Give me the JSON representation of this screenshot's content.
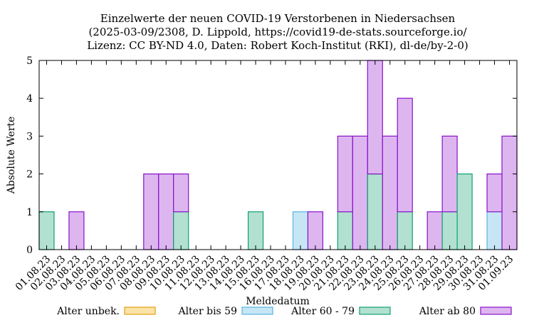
{
  "chart_data": {
    "type": "bar",
    "stacked": true,
    "title_lines": [
      "Einzelwerte der neuen COVID-19 Verstorbenen in Niedersachsen",
      "(2025-03-09/2308, D. Lippold, https://covid19-de-stats.sourceforge.io/",
      "Lizenz: CC BY-ND 4.0, Daten: Robert Koch-Institut (RKI), dl-de/by-2-0)"
    ],
    "xlabel": "Meldedatum",
    "ylabel": "Absolute Werte",
    "ylim": [
      0,
      5
    ],
    "yticks": [
      "0",
      "1",
      "2",
      "3",
      "4",
      "5"
    ],
    "legend_position": "bottom",
    "categories": [
      "01.08.23",
      "02.08.23",
      "03.08.23",
      "04.08.23",
      "05.08.23",
      "06.08.23",
      "07.08.23",
      "08.08.23",
      "09.08.23",
      "10.08.23",
      "11.08.23",
      "12.08.23",
      "13.08.23",
      "14.08.23",
      "15.08.23",
      "16.08.23",
      "17.08.23",
      "18.08.23",
      "19.08.23",
      "20.08.23",
      "21.08.23",
      "22.08.23",
      "23.08.23",
      "24.08.23",
      "25.08.23",
      "26.08.23",
      "27.08.23",
      "28.08.23",
      "29.08.23",
      "30.08.23",
      "31.08.23",
      "01.09.23"
    ],
    "series": [
      {
        "name": "Alter unbek.",
        "fill": "#fbe3a8",
        "stroke": "#e1a010",
        "values": [
          0,
          0,
          0,
          0,
          0,
          0,
          0,
          0,
          0,
          0,
          0,
          0,
          0,
          0,
          0,
          0,
          0,
          0,
          0,
          0,
          0,
          0,
          0,
          0,
          0,
          0,
          0,
          0,
          0,
          0,
          0,
          0
        ]
      },
      {
        "name": "Alter bis 59",
        "fill": "#c6e6f5",
        "stroke": "#56b4e0",
        "values": [
          0,
          0,
          0,
          0,
          0,
          0,
          0,
          0,
          0,
          0,
          0,
          0,
          0,
          0,
          0,
          0,
          0,
          1,
          0,
          0,
          0,
          0,
          0,
          0,
          0,
          0,
          0,
          0,
          0,
          0,
          1,
          0
        ]
      },
      {
        "name": "Alter 60 - 79",
        "fill": "#b3e1d1",
        "stroke": "#10a070",
        "values": [
          1,
          0,
          0,
          0,
          0,
          0,
          0,
          0,
          0,
          1,
          0,
          0,
          0,
          0,
          1,
          0,
          0,
          0,
          0,
          0,
          1,
          0,
          2,
          0,
          1,
          0,
          0,
          1,
          2,
          0,
          0,
          0
        ]
      },
      {
        "name": "Alter ab 80",
        "fill": "#ddb6f0",
        "stroke": "#8a12c8",
        "values": [
          0,
          0,
          1,
          0,
          0,
          0,
          0,
          2,
          2,
          1,
          0,
          0,
          0,
          0,
          0,
          0,
          0,
          0,
          1,
          0,
          2,
          3,
          3,
          3,
          3,
          0,
          1,
          2,
          0,
          0,
          1,
          3
        ]
      }
    ]
  }
}
